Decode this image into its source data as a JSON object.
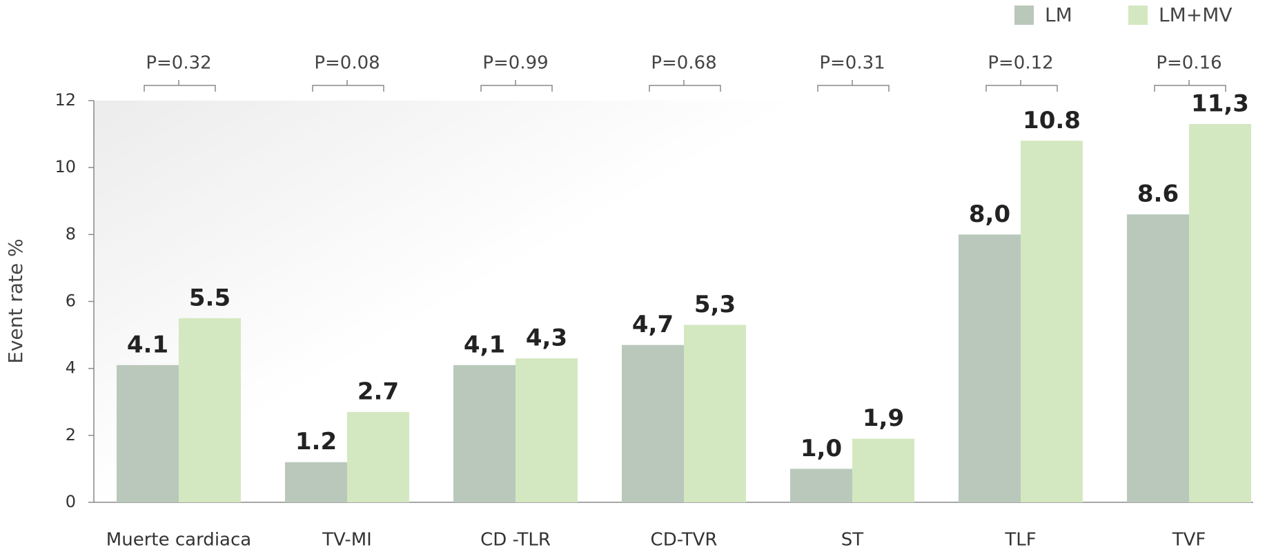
{
  "chart_data": {
    "type": "bar",
    "ylabel": "Event rate %",
    "categories": [
      "Muerte cardiaca",
      "TV-MI",
      "CD -TLR",
      "CD-TVR",
      "ST",
      "TLF",
      "TVF"
    ],
    "series": [
      {
        "name": "LM",
        "color": "#b9c8bb",
        "values": [
          4.1,
          1.2,
          4.1,
          4.7,
          1.0,
          8.0,
          8.6
        ],
        "value_labels": [
          "4.1",
          "1.2",
          "4,1",
          "4,7",
          "1,0",
          "8,0",
          "8.6"
        ]
      },
      {
        "name": "LM+MV",
        "color": "#d3e8c0",
        "values": [
          5.5,
          2.7,
          4.3,
          5.3,
          1.9,
          10.8,
          11.3
        ],
        "value_labels": [
          "5.5",
          "2.7",
          "4,3",
          "5,3",
          "1,9",
          "10.8",
          "11,3"
        ]
      }
    ],
    "annotations": [
      "P=0.32",
      "P=0.08",
      "P=0.99",
      "P=0.68",
      "P=0.31",
      "P=0.12",
      "P=0.16"
    ],
    "ylim": [
      0,
      12
    ],
    "yticks": [
      0,
      2,
      4,
      6,
      8,
      10,
      12
    ],
    "grid": false,
    "legend": "top-right"
  }
}
